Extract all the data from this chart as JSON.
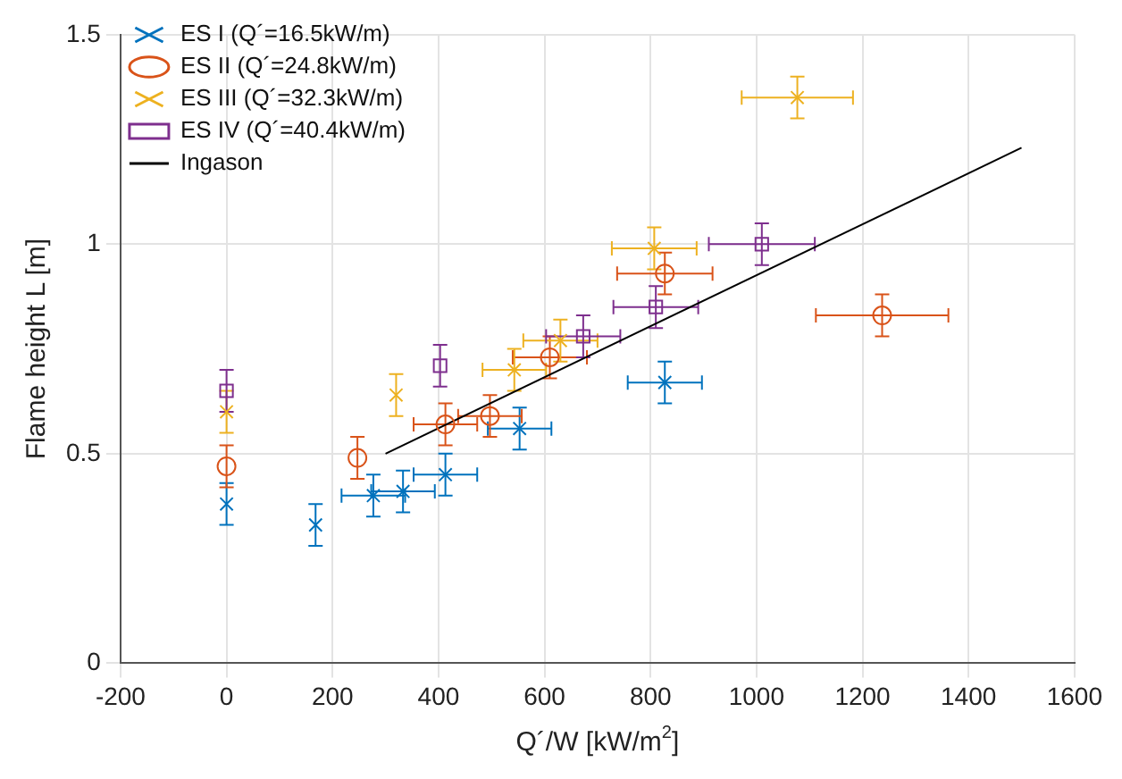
{
  "chart_data": {
    "type": "scatter",
    "xlabel": "Q´/W [kW/m$^{2}$]",
    "ylabel": "Flame height L [m]",
    "xlim": [
      -200,
      1600
    ],
    "xticks": [
      -200,
      0,
      200,
      400,
      600,
      800,
      {
        "value": 1000,
        "label": "1000"
      },
      {
        "value": 1200,
        "label": "1200"
      },
      {
        "value": 1400,
        "label": "1400"
      },
      {
        "value": 1600,
        "label": "1600"
      }
    ],
    "ylim": [
      0,
      1.5
    ],
    "yticks": [
      0,
      0.5,
      {
        "value": 1,
        "label": "1"
      },
      1.5
    ],
    "grid": true,
    "legend": "top left",
    "series": [
      {
        "name": "ES I (Q´=16.5kW/m)",
        "color": "#0072bd",
        "marker": "cross",
        "x": [
          0,
          168,
          277,
          333,
          413,
          553,
          827
        ],
        "values": [
          0.38,
          0.33,
          0.4,
          0.41,
          0.45,
          0.56,
          0.67
        ],
        "errors": [
          0.05,
          0.05,
          0.05,
          0.05,
          0.05,
          0.05,
          0.05
        ],
        "xerrors": [
          null,
          null,
          60,
          60,
          60,
          60,
          70
        ]
      },
      {
        "name": "ES II (Q´=24.8kW/m)",
        "color": "#d95319",
        "marker": "circle",
        "x": [
          0,
          247,
          413,
          497,
          610,
          827,
          1237
        ],
        "values": [
          0.47,
          0.49,
          0.57,
          0.59,
          0.73,
          0.93,
          0.83
        ],
        "errors": [
          0.05,
          0.05,
          0.05,
          0.05,
          0.05,
          0.05,
          0.05
        ],
        "xerrors": [
          null,
          null,
          60,
          60,
          70,
          90,
          125
        ]
      },
      {
        "name": "ES III (Q´=32.3kW/m)",
        "color": "#edb120",
        "marker": "cross",
        "x": [
          0,
          320,
          543,
          630,
          807,
          1077
        ],
        "values": [
          0.6,
          0.64,
          0.7,
          0.77,
          0.99,
          1.35
        ],
        "errors": [
          0.05,
          0.05,
          0.05,
          0.05,
          0.05,
          0.05
        ],
        "xerrors": [
          null,
          null,
          60,
          70,
          80,
          105
        ]
      },
      {
        "name": "ES IV (Q´=40.4kW/m)",
        "color": "#7e2f8e",
        "marker": "square",
        "x": [
          0,
          403,
          673,
          810,
          1010
        ],
        "values": [
          0.65,
          0.71,
          0.78,
          0.85,
          1.0
        ],
        "errors": [
          0.05,
          0.05,
          0.05,
          0.05,
          0.05
        ],
        "xerrors": [
          null,
          null,
          70,
          80,
          100
        ]
      },
      {
        "name": "Ingason",
        "type": "line",
        "color": "#000000",
        "marker": "none",
        "x": [
          300,
          1500
        ],
        "values": [
          0.5,
          1.23
        ]
      }
    ]
  }
}
